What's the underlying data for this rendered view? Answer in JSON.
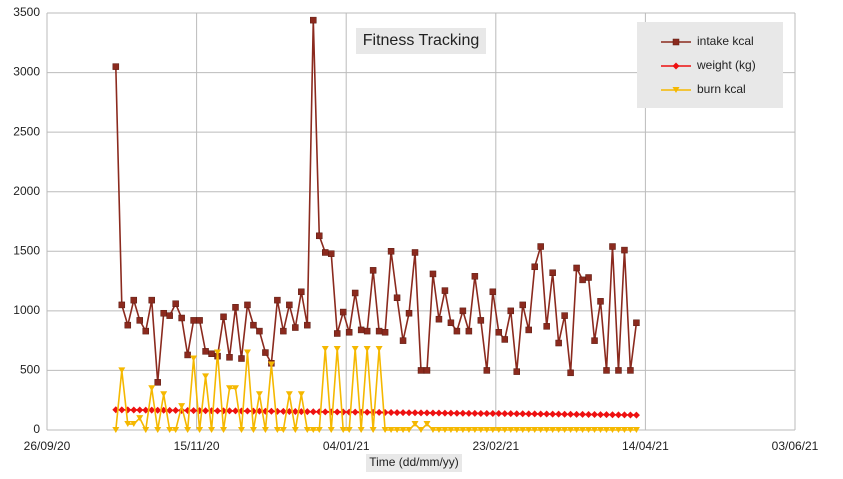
{
  "chart_data": {
    "type": "line",
    "title": "Fitness Tracking",
    "x_label": "Time (dd/mm/yy)",
    "x": [
      "19/10/20",
      "21/10/20",
      "23/10/20",
      "25/10/20",
      "27/10/20",
      "29/10/20",
      "31/10/20",
      "02/11/20",
      "04/11/20",
      "06/11/20",
      "08/11/20",
      "10/11/20",
      "12/11/20",
      "14/11/20",
      "16/11/20",
      "18/11/20",
      "20/11/20",
      "22/11/20",
      "24/11/20",
      "26/11/20",
      "28/11/20",
      "30/11/20",
      "02/12/20",
      "04/12/20",
      "06/12/20",
      "08/12/20",
      "10/12/20",
      "12/12/20",
      "14/12/20",
      "16/12/20",
      "18/12/20",
      "20/12/20",
      "22/12/20",
      "24/12/20",
      "26/12/20",
      "28/12/20",
      "30/12/20",
      "01/01/21",
      "03/01/21",
      "05/01/21",
      "07/01/21",
      "09/01/21",
      "11/01/21",
      "13/01/21",
      "15/01/21",
      "17/01/21",
      "19/01/21",
      "21/01/21",
      "23/01/21",
      "25/01/21",
      "27/01/21",
      "29/01/21",
      "31/01/21",
      "02/02/21",
      "04/02/21",
      "06/02/21",
      "08/02/21",
      "10/02/21",
      "12/02/21",
      "14/02/21",
      "16/02/21",
      "18/02/21",
      "20/02/21",
      "22/02/21",
      "24/02/21",
      "26/02/21",
      "28/02/21",
      "02/03/21",
      "04/03/21",
      "06/03/21",
      "08/03/21",
      "10/03/21",
      "12/03/21",
      "14/03/21",
      "16/03/21",
      "18/03/21",
      "20/03/21",
      "22/03/21",
      "24/03/21",
      "26/03/21",
      "28/03/21",
      "30/03/21",
      "01/04/21",
      "03/04/21",
      "05/04/21",
      "07/04/21",
      "09/04/21",
      "11/04/21"
    ],
    "series": [
      {
        "name": "intake kcal",
        "color": "#8b2a1e",
        "marker": "square",
        "values": [
          3050,
          1050,
          880,
          1090,
          920,
          830,
          1090,
          400,
          980,
          960,
          1060,
          940,
          630,
          920,
          920,
          660,
          640,
          620,
          950,
          610,
          1030,
          600,
          1050,
          880,
          830,
          650,
          560,
          1090,
          830,
          1050,
          860,
          1160,
          880,
          3440,
          1630,
          1490,
          1480,
          810,
          990,
          820,
          1150,
          840,
          830,
          1340,
          830,
          820,
          1500,
          1110,
          750,
          980,
          1490,
          500,
          500,
          1310,
          930,
          1170,
          900,
          830,
          1000,
          830,
          1290,
          920,
          500,
          1160,
          820,
          760,
          1000,
          490,
          1050,
          840,
          1370,
          1540,
          870,
          1320,
          730,
          960,
          480,
          1360,
          1260,
          1280,
          750,
          1080,
          500,
          1540,
          500,
          1510,
          500,
          900
        ]
      },
      {
        "name": "weight (kg)",
        "color": "#ee1111",
        "marker": "diamond",
        "values": [
          170,
          169,
          169,
          168,
          168,
          167,
          167,
          166,
          166,
          165,
          165,
          164,
          164,
          163,
          163,
          162,
          162,
          161,
          161,
          160,
          160,
          159,
          159,
          158,
          158,
          157,
          157,
          156,
          156,
          155,
          155,
          154,
          154,
          153,
          153,
          152,
          152,
          151,
          151,
          150,
          150,
          149,
          149,
          148,
          148,
          147,
          147,
          146,
          146,
          145,
          145,
          144,
          144,
          143,
          143,
          142,
          142,
          141,
          141,
          140,
          140,
          139,
          139,
          138,
          138,
          137,
          137,
          136,
          136,
          135,
          135,
          134,
          134,
          133,
          133,
          132,
          132,
          131,
          131,
          130,
          130,
          129,
          129,
          128,
          127,
          127,
          126,
          125
        ]
      },
      {
        "name": "burn kcal",
        "color": "#f5b800",
        "marker": "triangle-down",
        "values": [
          0,
          500,
          50,
          50,
          100,
          0,
          350,
          0,
          300,
          0,
          0,
          200,
          0,
          600,
          0,
          450,
          0,
          650,
          0,
          350,
          350,
          0,
          650,
          0,
          300,
          0,
          550,
          0,
          0,
          300,
          0,
          300,
          0,
          0,
          0,
          680,
          0,
          680,
          0,
          0,
          680,
          0,
          680,
          0,
          680,
          0,
          0,
          0,
          0,
          0,
          50,
          0,
          50,
          0,
          0,
          0,
          0,
          0,
          0,
          0,
          0,
          0,
          0,
          0,
          0,
          0,
          0,
          0,
          0,
          0,
          0,
          0,
          0,
          0,
          0,
          0,
          0,
          0,
          0,
          0,
          0,
          0,
          0,
          0,
          0,
          0,
          0,
          0
        ]
      }
    ],
    "xlim": [
      "26/09/20",
      "03/06/21"
    ],
    "xticks": [
      "26/09/20",
      "15/11/20",
      "04/01/21",
      "23/02/21",
      "14/04/21",
      "03/06/21"
    ],
    "ylim": [
      0,
      3500
    ],
    "yticks": [
      0,
      500,
      1000,
      1500,
      2000,
      2500,
      3000,
      3500
    ],
    "grid": true,
    "legend": "top-right"
  }
}
